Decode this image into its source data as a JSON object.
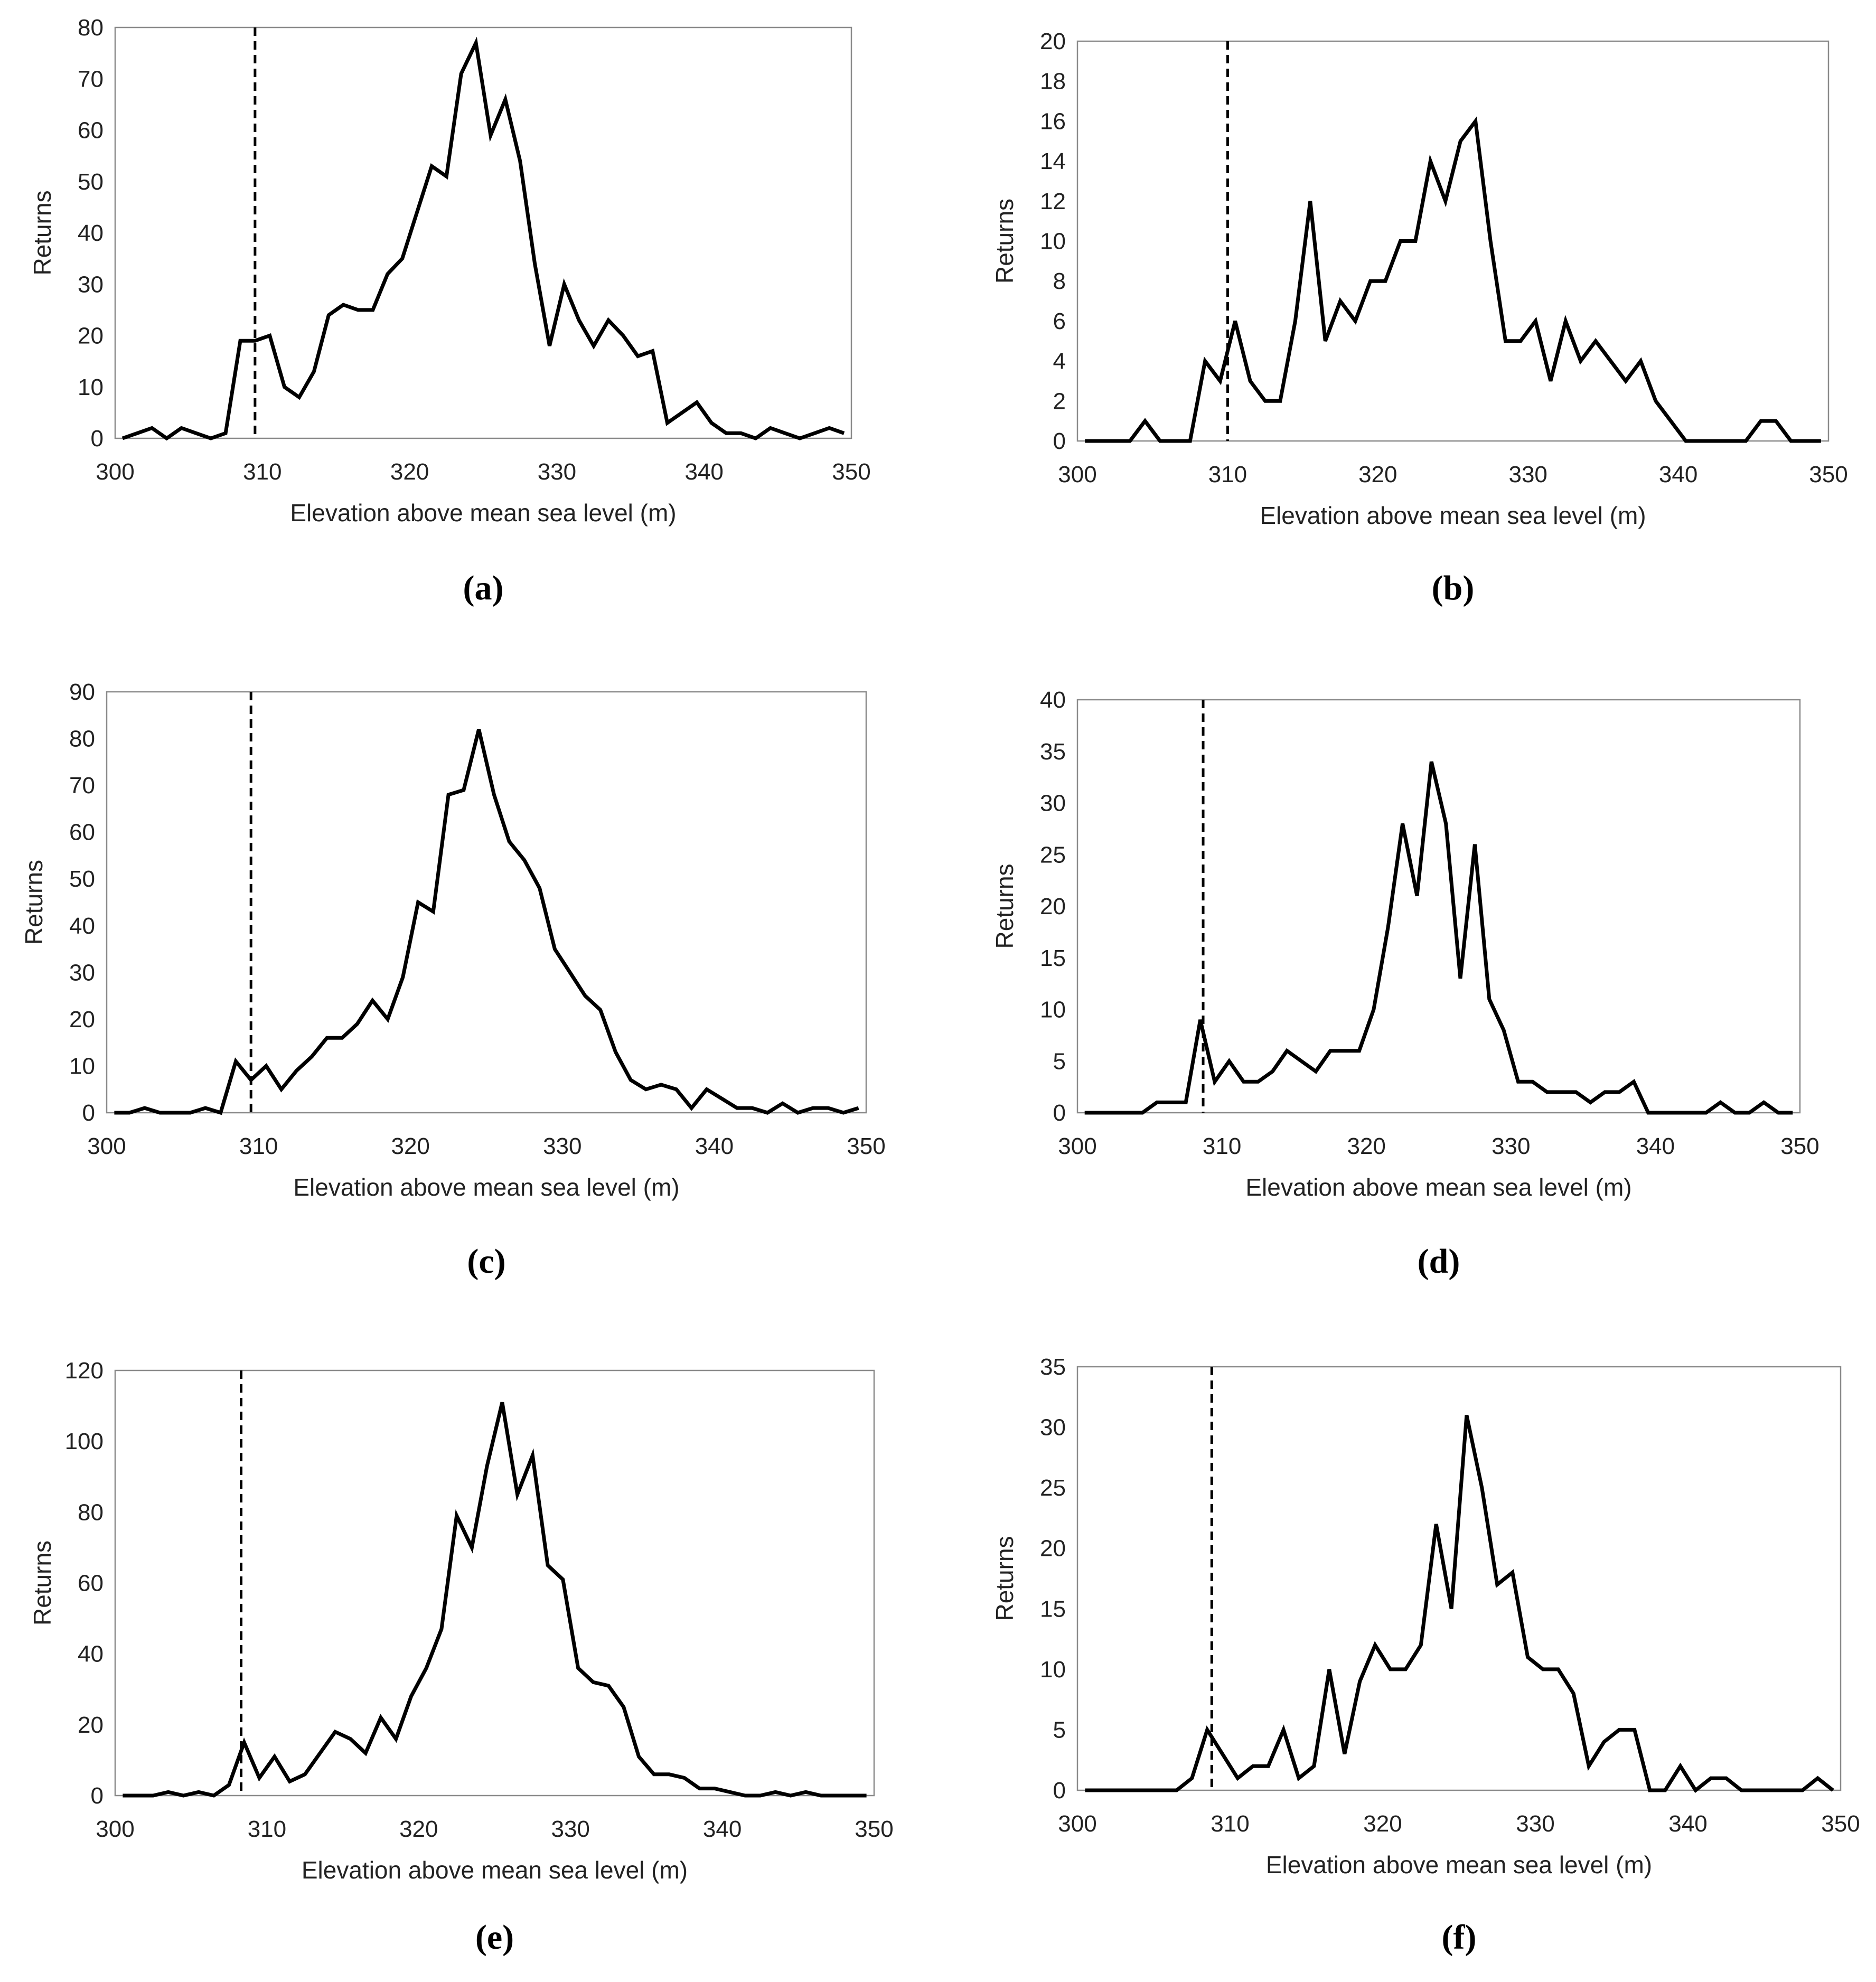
{
  "chart_data": [
    {
      "panel": "(a)",
      "type": "line",
      "xlabel": "Elevation above mean sea level (m)",
      "ylabel": "Returns",
      "xlim": [
        300,
        350
      ],
      "ylim": [
        0,
        80
      ],
      "xticks": [
        300,
        310,
        320,
        330,
        340,
        350
      ],
      "yticks": [
        0,
        10,
        20,
        30,
        40,
        50,
        60,
        70,
        80
      ],
      "reference_line_x": 309.5,
      "x": [
        300.5,
        301.5,
        302.5,
        303.5,
        304.5,
        305.5,
        306.5,
        307.5,
        308.5,
        309.5,
        310.5,
        311.5,
        312.5,
        313.5,
        314.5,
        315.5,
        316.5,
        317.5,
        318.5,
        319.5,
        320.5,
        321.5,
        322.5,
        323.5,
        324.5,
        325.5,
        326.5,
        327.5,
        328.5,
        329.5,
        330.5,
        331.5,
        332.5,
        333.5,
        334.5,
        335.5,
        336.5,
        337.5,
        338.5,
        339.5,
        340.5,
        341.5,
        342.5,
        343.5,
        344.5,
        345.5,
        346.5,
        347.5,
        348.5,
        349.5
      ],
      "values": [
        0,
        1,
        2,
        0,
        2,
        1,
        0,
        1,
        19,
        19,
        20,
        10,
        8,
        13,
        24,
        26,
        25,
        25,
        32,
        35,
        44,
        53,
        51,
        71,
        77,
        59,
        66,
        54,
        34,
        18,
        30,
        23,
        18,
        23,
        20,
        16,
        17,
        3,
        5,
        7,
        3,
        1,
        1,
        0,
        2,
        1,
        0,
        1,
        2,
        1
      ]
    },
    {
      "panel": "(b)",
      "type": "line",
      "xlabel": "Elevation above mean sea level (m)",
      "ylabel": "Returns",
      "xlim": [
        300,
        350
      ],
      "ylim": [
        0,
        20
      ],
      "xticks": [
        300,
        310,
        320,
        330,
        340,
        350
      ],
      "yticks": [
        0,
        2,
        4,
        6,
        8,
        10,
        12,
        14,
        16,
        18,
        20
      ],
      "reference_line_x": 310,
      "x": [
        300.5,
        301.5,
        302.5,
        303.5,
        304.5,
        305.5,
        306.5,
        307.5,
        308.5,
        309.5,
        310.5,
        311.5,
        312.5,
        313.5,
        314.5,
        315.5,
        316.5,
        317.5,
        318.5,
        319.5,
        320.5,
        321.5,
        322.5,
        323.5,
        324.5,
        325.5,
        326.5,
        327.5,
        328.5,
        329.5,
        330.5,
        331.5,
        332.5,
        333.5,
        334.5,
        335.5,
        336.5,
        337.5,
        338.5,
        339.5,
        340.5,
        341.5,
        342.5,
        343.5,
        344.5,
        345.5,
        346.5,
        347.5,
        348.5,
        349.5
      ],
      "values": [
        0,
        0,
        0,
        0,
        1,
        0,
        0,
        0,
        4,
        3,
        6,
        3,
        2,
        2,
        6,
        12,
        5,
        7,
        6,
        8,
        8,
        10,
        10,
        14,
        12,
        15,
        16,
        10,
        5,
        5,
        6,
        3,
        6,
        4,
        5,
        4,
        3,
        4,
        2,
        1,
        0,
        0,
        0,
        0,
        0,
        1,
        1,
        0,
        0,
        0
      ]
    },
    {
      "panel": "(c)",
      "type": "line",
      "xlabel": "Elevation above mean sea level (m)",
      "ylabel": "Returns",
      "xlim": [
        300,
        350
      ],
      "ylim": [
        0,
        90
      ],
      "xticks": [
        300,
        310,
        320,
        330,
        340,
        350
      ],
      "yticks": [
        0,
        10,
        20,
        30,
        40,
        50,
        60,
        70,
        80,
        90
      ],
      "reference_line_x": 309.5,
      "x": [
        300.5,
        301.5,
        302.5,
        303.5,
        304.5,
        305.5,
        306.5,
        307.5,
        308.5,
        309.5,
        310.5,
        311.5,
        312.5,
        313.5,
        314.5,
        315.5,
        316.5,
        317.5,
        318.5,
        319.5,
        320.5,
        321.5,
        322.5,
        323.5,
        324.5,
        325.5,
        326.5,
        327.5,
        328.5,
        329.5,
        330.5,
        331.5,
        332.5,
        333.5,
        334.5,
        335.5,
        336.5,
        337.5,
        338.5,
        339.5,
        340.5,
        341.5,
        342.5,
        343.5,
        344.5,
        345.5,
        346.5,
        347.5,
        348.5,
        349.5
      ],
      "values": [
        0,
        0,
        1,
        0,
        0,
        0,
        1,
        0,
        11,
        7,
        10,
        5,
        9,
        12,
        16,
        16,
        19,
        24,
        20,
        29,
        45,
        43,
        68,
        69,
        82,
        68,
        58,
        54,
        48,
        35,
        30,
        25,
        22,
        13,
        7,
        5,
        6,
        5,
        1,
        5,
        3,
        1,
        1,
        0,
        2,
        0,
        1,
        1,
        0,
        1
      ]
    },
    {
      "panel": "(d)",
      "type": "line",
      "xlabel": "Elevation above mean sea level (m)",
      "ylabel": "Returns",
      "xlim": [
        300,
        350
      ],
      "ylim": [
        0,
        40
      ],
      "xticks": [
        300,
        310,
        320,
        330,
        340,
        350
      ],
      "yticks": [
        0,
        5,
        10,
        15,
        20,
        25,
        30,
        35,
        40
      ],
      "reference_line_x": 308.7,
      "x": [
        300.5,
        301.5,
        302.5,
        303.5,
        304.5,
        305.5,
        306.5,
        307.5,
        308.5,
        309.5,
        310.5,
        311.5,
        312.5,
        313.5,
        314.5,
        315.5,
        316.5,
        317.5,
        318.5,
        319.5,
        320.5,
        321.5,
        322.5,
        323.5,
        324.5,
        325.5,
        326.5,
        327.5,
        328.5,
        329.5,
        330.5,
        331.5,
        332.5,
        333.5,
        334.5,
        335.5,
        336.5,
        337.5,
        338.5,
        339.5,
        340.5,
        341.5,
        342.5,
        343.5,
        344.5,
        345.5,
        346.5,
        347.5,
        348.5,
        349.5
      ],
      "values": [
        0,
        0,
        0,
        0,
        0,
        1,
        1,
        1,
        9,
        3,
        5,
        3,
        3,
        4,
        6,
        5,
        4,
        6,
        6,
        6,
        10,
        18,
        28,
        21,
        34,
        28,
        13,
        26,
        11,
        8,
        3,
        3,
        2,
        2,
        2,
        1,
        2,
        2,
        3,
        0,
        0,
        0,
        0,
        0,
        1,
        0,
        0,
        1,
        0,
        0
      ]
    },
    {
      "panel": "(e)",
      "type": "line",
      "xlabel": "Elevation above mean sea level (m)",
      "ylabel": "Returns",
      "xlim": [
        300,
        350
      ],
      "ylim": [
        0,
        120
      ],
      "xticks": [
        300,
        310,
        320,
        330,
        340,
        350
      ],
      "yticks": [
        0,
        20,
        40,
        60,
        80,
        100,
        120
      ],
      "reference_line_x": 308.3,
      "x": [
        300.5,
        301.5,
        302.5,
        303.5,
        304.5,
        305.5,
        306.5,
        307.5,
        308.5,
        309.5,
        310.5,
        311.5,
        312.5,
        313.5,
        314.5,
        315.5,
        316.5,
        317.5,
        318.5,
        319.5,
        320.5,
        321.5,
        322.5,
        323.5,
        324.5,
        325.5,
        326.5,
        327.5,
        328.5,
        329.5,
        330.5,
        331.5,
        332.5,
        333.5,
        334.5,
        335.5,
        336.5,
        337.5,
        338.5,
        339.5,
        340.5,
        341.5,
        342.5,
        343.5,
        344.5,
        345.5,
        346.5,
        347.5,
        348.5,
        349.5
      ],
      "values": [
        0,
        0,
        0,
        1,
        0,
        1,
        0,
        3,
        15,
        5,
        11,
        4,
        6,
        12,
        18,
        16,
        12,
        22,
        16,
        28,
        36,
        47,
        79,
        70,
        93,
        111,
        85,
        96,
        65,
        61,
        36,
        32,
        31,
        25,
        11,
        6,
        6,
        5,
        2,
        2,
        1,
        0,
        0,
        1,
        0,
        1,
        0,
        0,
        0,
        0
      ]
    },
    {
      "panel": "(f)",
      "type": "line",
      "xlabel": "Elevation above mean sea level (m)",
      "ylabel": "Returns",
      "xlim": [
        300,
        350
      ],
      "ylim": [
        0,
        35
      ],
      "xticks": [
        300,
        310,
        320,
        330,
        340,
        350
      ],
      "yticks": [
        0,
        5,
        10,
        15,
        20,
        25,
        30,
        35
      ],
      "reference_line_x": 308.8,
      "x": [
        300.5,
        301.5,
        302.5,
        303.5,
        304.5,
        305.5,
        306.5,
        307.5,
        308.5,
        309.5,
        310.5,
        311.5,
        312.5,
        313.5,
        314.5,
        315.5,
        316.5,
        317.5,
        318.5,
        319.5,
        320.5,
        321.5,
        322.5,
        323.5,
        324.5,
        325.5,
        326.5,
        327.5,
        328.5,
        329.5,
        330.5,
        331.5,
        332.5,
        333.5,
        334.5,
        335.5,
        336.5,
        337.5,
        338.5,
        339.5,
        340.5,
        341.5,
        342.5,
        343.5,
        344.5,
        345.5,
        346.5,
        347.5,
        348.5,
        349.5
      ],
      "values": [
        0,
        0,
        0,
        0,
        0,
        0,
        0,
        1,
        5,
        3,
        1,
        2,
        2,
        5,
        1,
        2,
        10,
        3,
        9,
        12,
        10,
        10,
        12,
        22,
        15,
        31,
        25,
        17,
        18,
        11,
        10,
        10,
        8,
        2,
        4,
        5,
        5,
        0,
        0,
        2,
        0,
        1,
        1,
        0,
        0,
        0,
        0,
        0,
        1,
        0
      ]
    }
  ]
}
